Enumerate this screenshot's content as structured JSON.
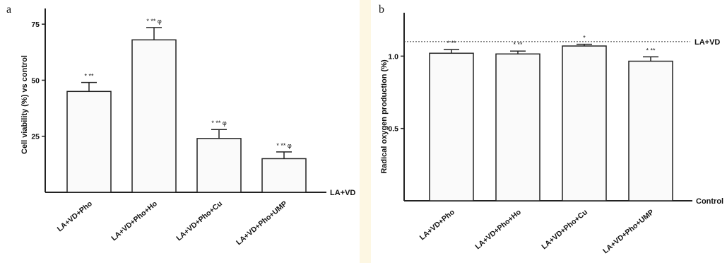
{
  "chart_data": [
    {
      "panel": "a",
      "type": "bar",
      "ylabel": "Cell viability (%) vs control",
      "baseline_label": "LA+VD",
      "categories": [
        "LA+VD+Pho",
        "LA+VD+Pho+Ho",
        "LA+VD+Pho+Cu",
        "LA+VD+Pho+UMP"
      ],
      "values": [
        45,
        68,
        24,
        15
      ],
      "errors": [
        4,
        5.5,
        4,
        3
      ],
      "annotations": [
        "* **",
        "* ** φ",
        "* ** φ",
        "* ** φ"
      ],
      "yticks": [
        25,
        50,
        75
      ],
      "ylim": [
        0,
        82
      ]
    },
    {
      "panel": "b",
      "type": "bar",
      "ylabel": "Radical oxygen production (%)",
      "baseline_label": "Control",
      "reference_label": "LA+VD",
      "reference_value": 1.1,
      "categories": [
        "LA+VD+Pho",
        "LA+VD+Pho+Ho",
        "LA+VD+Pho+Cu",
        "LA+VD+Pho+UMP"
      ],
      "values": [
        1.02,
        1.015,
        1.07,
        0.965
      ],
      "errors": [
        0.025,
        0.02,
        0.012,
        0.03
      ],
      "annotations": [
        "* **",
        "* **",
        "*",
        "* **"
      ],
      "yticks": [
        "0.5",
        "1.0"
      ],
      "ylim": [
        0,
        1.3
      ]
    }
  ]
}
